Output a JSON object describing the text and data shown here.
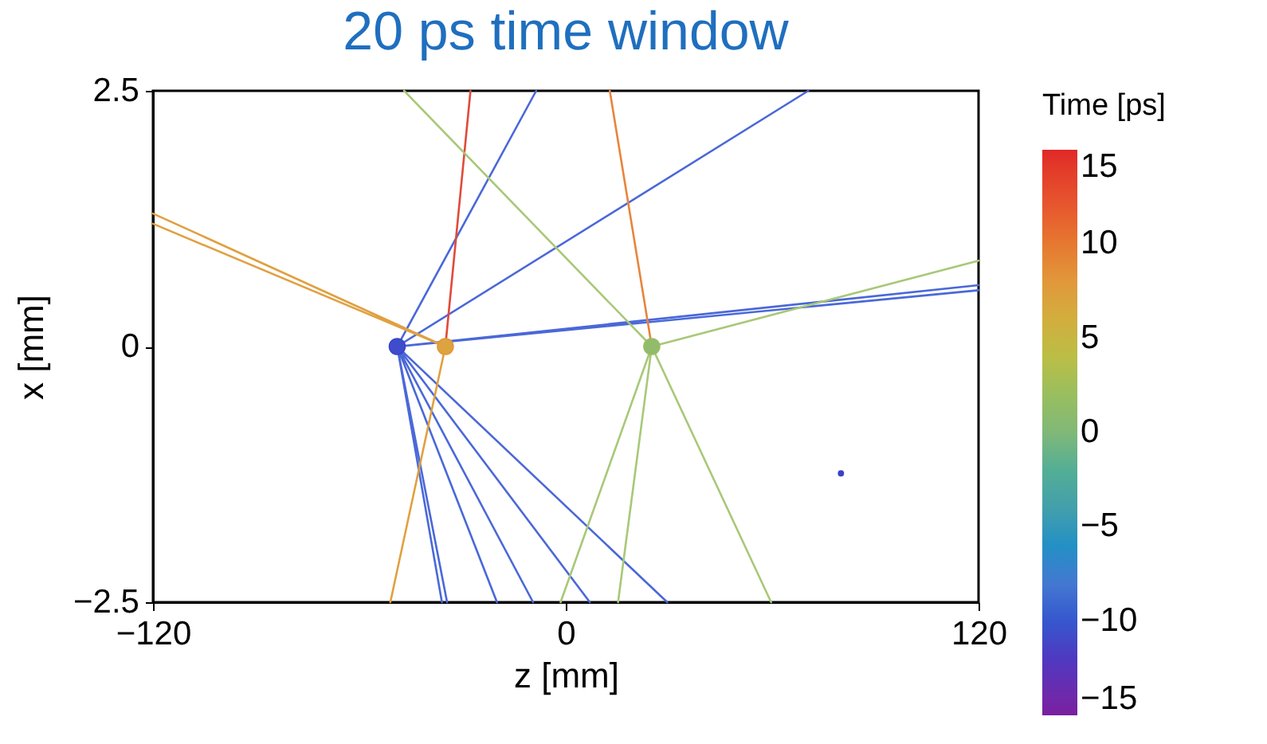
{
  "chart_data": {
    "type": "line",
    "title": "20 ps time window",
    "xlabel": "z [mm]",
    "ylabel": "x [mm]",
    "clabel": "Time [ps]",
    "xlim": [
      -120,
      120
    ],
    "ylim": [
      -2.5,
      2.5
    ],
    "xticks": [
      {
        "value": -120,
        "label": "−120"
      },
      0,
      120
    ],
    "yticks": [
      {
        "value": -2.5,
        "label": "−2.5"
      },
      0,
      2.5
    ],
    "clim": [
      -15,
      15
    ],
    "cticks": [
      {
        "value": -15,
        "label": "−15"
      },
      {
        "value": -10,
        "label": "−10"
      },
      {
        "value": -5,
        "label": "−5"
      },
      0,
      5,
      10,
      15
    ],
    "grid": false,
    "line_style": "solid",
    "series": [
      {
        "color": "#4a68d8",
        "x": [
          -8.6,
          -49,
          70.5,
          -49,
          120,
          -49,
          120,
          -49,
          -36,
          -49,
          -34.5,
          -49,
          -20,
          -49,
          -9.5,
          -49,
          7,
          -49,
          29.5
        ],
        "values": [
          2.5,
          0,
          2.5,
          0,
          0.6,
          0,
          0.55,
          0,
          -2.5,
          0,
          -2.5,
          0,
          -2.5,
          0,
          -2.5,
          0,
          -2.5,
          0,
          -2.5
        ]
      },
      {
        "color": "#e04a3a",
        "x": [
          -35,
          -27.7
        ],
        "values": [
          0,
          2.5
        ]
      },
      {
        "color": "#e0a040",
        "x": [
          -120,
          -35,
          -120,
          -35,
          -51
        ],
        "values": [
          1.3,
          0,
          1.2,
          0,
          -2.5
        ]
      },
      {
        "color": "#e8843c",
        "x": [
          25,
          12.8
        ],
        "values": [
          0,
          2.5
        ]
      },
      {
        "color": "#a8c878",
        "x": [
          -47,
          25,
          120,
          25,
          -1.5,
          25,
          15.2,
          25,
          59.7
        ],
        "values": [
          2.5,
          0,
          0.84,
          0,
          -2.5,
          0,
          -2.5,
          0,
          -2.5
        ]
      },
      {
        "type": "bubble",
        "marker": "circle",
        "x": [
          -49,
          -35,
          25,
          80
        ],
        "values": [
          0,
          0,
          0,
          -1.24
        ],
        "cvalues": [
          -11,
          8,
          2,
          -11
        ],
        "colors": [
          "#3f4ccb",
          "#dca33e",
          "#92bb6c",
          "#3c3fc8"
        ],
        "sizes": [
          1,
          1,
          1,
          0.1
        ]
      }
    ]
  }
}
